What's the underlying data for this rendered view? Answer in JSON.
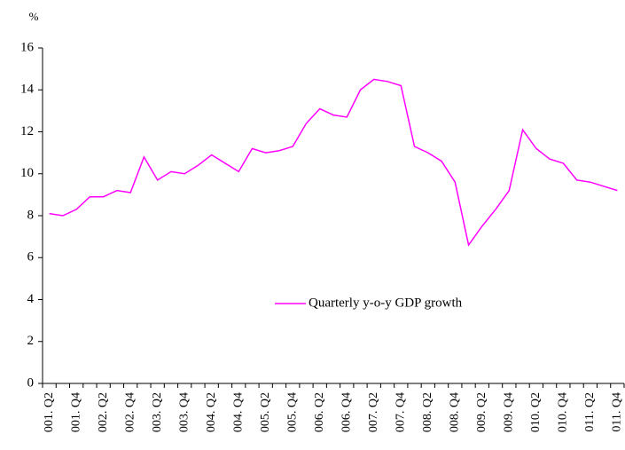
{
  "chart_data": {
    "type": "line",
    "y_label": "%",
    "categories": [
      "001. Q2",
      null,
      "001. Q4",
      null,
      "002. Q2",
      null,
      "002. Q4",
      null,
      "003. Q2",
      null,
      "003. Q4",
      null,
      "004. Q2",
      null,
      "004. Q4",
      null,
      "005. Q2",
      null,
      "005. Q4",
      null,
      "006. Q2",
      null,
      "006. Q4",
      null,
      "007. Q2",
      null,
      "007. Q4",
      null,
      "008. Q2",
      null,
      "008. Q4",
      null,
      "009. Q2",
      null,
      "009. Q4",
      null,
      "010. Q2",
      null,
      "010. Q4",
      null,
      "011. Q2",
      null,
      "011. Q4"
    ],
    "series": [
      {
        "name": "Quarterly y-o-y GDP growth",
        "color": "#ff00ff",
        "values": [
          8.1,
          8.0,
          8.3,
          8.9,
          8.9,
          9.2,
          9.1,
          10.8,
          9.7,
          10.1,
          10.0,
          10.4,
          10.9,
          10.5,
          10.1,
          11.2,
          11.0,
          11.1,
          11.3,
          12.4,
          13.1,
          12.8,
          12.7,
          14.0,
          14.5,
          14.4,
          14.2,
          11.3,
          11.0,
          10.6,
          9.6,
          6.6,
          7.5,
          8.3,
          9.2,
          12.1,
          11.2,
          10.7,
          10.5,
          9.7,
          9.6,
          9.4,
          9.2
        ]
      }
    ],
    "ylim": [
      0,
      16
    ],
    "yticks": [
      0,
      2,
      4,
      6,
      8,
      10,
      12,
      14,
      16
    ],
    "grid": false,
    "legend": "center"
  }
}
